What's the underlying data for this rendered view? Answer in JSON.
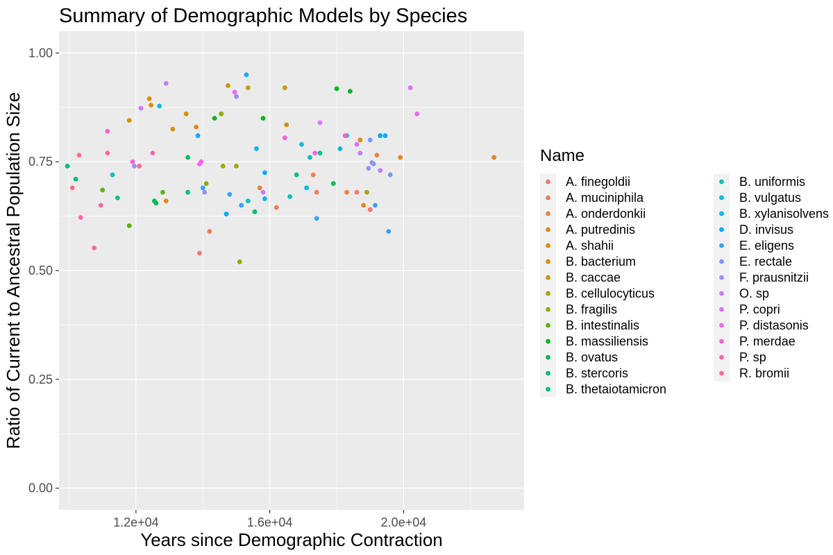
{
  "chart_data": {
    "type": "scatter",
    "title": "Summary of Demographic Models by Species",
    "xlabel": "Years since Demographic Contraction",
    "ylabel": "Ratio of Current to Ancestral Population Size",
    "xlim": [
      9700,
      23600
    ],
    "ylim": [
      -0.05,
      1.05
    ],
    "x_ticks": [
      12000,
      16000,
      20000
    ],
    "x_tick_labels": [
      "1.2e+04",
      "1.6e+04",
      "2.0e+04"
    ],
    "y_ticks": [
      0.0,
      0.25,
      0.5,
      0.75,
      1.0
    ],
    "y_tick_labels": [
      "0.00",
      "0.25",
      "0.50",
      "0.75",
      "1.00"
    ],
    "grid": true,
    "panel_background": "#ebebeb",
    "legend": {
      "title": "Name",
      "position": "right",
      "columns": 2
    },
    "series": [
      {
        "name": "A. finegoldii",
        "color": "#F8766D",
        "points": [
          [
            13900,
            0.54
          ],
          [
            18600,
            0.68
          ],
          [
            19000,
            0.64
          ]
        ]
      },
      {
        "name": "A. muciniphila",
        "color": "#F37B59",
        "points": [
          [
            14200,
            0.59
          ],
          [
            16200,
            0.645
          ],
          [
            17300,
            0.72
          ],
          [
            17400,
            0.68
          ]
        ]
      },
      {
        "name": "A. onderdonkii",
        "color": "#ED813E",
        "points": [
          [
            15700,
            0.69
          ],
          [
            18300,
            0.68
          ],
          [
            19200,
            0.765
          ]
        ]
      },
      {
        "name": "A. putredinis",
        "color": "#E6861A",
        "points": [
          [
            12900,
            0.66
          ],
          [
            13800,
            0.83
          ],
          [
            18800,
            0.65
          ],
          [
            19900,
            0.76
          ],
          [
            22700,
            0.76
          ]
        ]
      },
      {
        "name": "A. shahii",
        "color": "#DE8C00",
        "points": [
          [
            12400,
            0.895
          ],
          [
            12450,
            0.88
          ],
          [
            18700,
            0.8
          ]
        ]
      },
      {
        "name": "B. bacterium",
        "color": "#D39200",
        "points": [
          [
            11800,
            0.845
          ],
          [
            13100,
            0.825
          ],
          [
            13500,
            0.86
          ],
          [
            16500,
            0.835
          ]
        ]
      },
      {
        "name": "B. caccae",
        "color": "#C99800",
        "points": [
          [
            14750,
            0.925
          ],
          [
            15350,
            0.92
          ],
          [
            16450,
            0.92
          ]
        ]
      },
      {
        "name": "B. cellulocyticus",
        "color": "#A6A500",
        "points": [
          [
            14600,
            0.74
          ],
          [
            15000,
            0.74
          ],
          [
            18900,
            0.68
          ]
        ]
      },
      {
        "name": "B. fragilis",
        "color": "#8EAB00",
        "points": [
          [
            14100,
            0.7
          ],
          [
            14550,
            0.86
          ],
          [
            15100,
            0.52
          ]
        ]
      },
      {
        "name": "B. intestinalis",
        "color": "#5BB300",
        "points": [
          [
            11000,
            0.685
          ],
          [
            11800,
            0.603
          ],
          [
            12800,
            0.68
          ]
        ]
      },
      {
        "name": "B. massiliensis",
        "color": "#00B81F",
        "points": [
          [
            14350,
            0.85
          ],
          [
            15800,
            0.85
          ],
          [
            18000,
            0.918
          ],
          [
            18400,
            0.912
          ]
        ]
      },
      {
        "name": "B. ovatus",
        "color": "#00BC56",
        "points": [
          [
            12550,
            0.66
          ],
          [
            12600,
            0.655
          ],
          [
            13550,
            0.76
          ],
          [
            17900,
            0.7
          ]
        ]
      },
      {
        "name": "B. stercoris",
        "color": "#00BE6C",
        "points": [
          [
            9950,
            0.74
          ],
          [
            10200,
            0.71
          ],
          [
            13550,
            0.68
          ],
          [
            15550,
            0.635
          ]
        ]
      },
      {
        "name": "B. thetaiotamicron",
        "color": "#00C08B",
        "points": [
          [
            11450,
            0.667
          ],
          [
            16800,
            0.72
          ],
          [
            17500,
            0.77
          ]
        ]
      },
      {
        "name": "B. uniformis",
        "color": "#00C0B8",
        "points": [
          [
            11300,
            0.72
          ],
          [
            15350,
            0.66
          ],
          [
            16600,
            0.67
          ],
          [
            17200,
            0.76
          ],
          [
            18300,
            0.81
          ]
        ]
      },
      {
        "name": "B. vulgatus",
        "color": "#00BCD8",
        "points": [
          [
            12700,
            0.878
          ],
          [
            16950,
            0.79
          ],
          [
            17100,
            0.69
          ]
        ]
      },
      {
        "name": "B. xylanisolvens",
        "color": "#00B4EF",
        "points": [
          [
            15300,
            0.95
          ],
          [
            15600,
            0.78
          ],
          [
            15850,
            0.665
          ],
          [
            18100,
            0.78
          ]
        ]
      },
      {
        "name": "D. invisus",
        "color": "#00A9FF",
        "points": [
          [
            13850,
            0.81
          ],
          [
            14700,
            0.63
          ],
          [
            15850,
            0.725
          ],
          [
            19300,
            0.81
          ],
          [
            19450,
            0.81
          ]
        ]
      },
      {
        "name": "E. eligens",
        "color": "#35A2FF",
        "points": [
          [
            14000,
            0.69
          ],
          [
            14800,
            0.675
          ],
          [
            15150,
            0.65
          ],
          [
            17400,
            0.62
          ],
          [
            19150,
            0.65
          ],
          [
            19550,
            0.59
          ]
        ]
      },
      {
        "name": "E. rectale",
        "color": "#7799FF",
        "points": [
          [
            19000,
            0.8
          ],
          [
            19100,
            0.745
          ],
          [
            19600,
            0.72
          ]
        ]
      },
      {
        "name": "F. prausnitzii",
        "color": "#9590FF",
        "points": [
          [
            11950,
            0.74
          ],
          [
            14050,
            0.68
          ],
          [
            15000,
            0.9
          ],
          [
            18950,
            0.735
          ],
          [
            19050,
            0.748
          ]
        ]
      },
      {
        "name": "O. sp",
        "color": "#C77CFF",
        "points": [
          [
            12900,
            0.93
          ],
          [
            15800,
            0.68
          ],
          [
            18700,
            0.77
          ],
          [
            19300,
            0.73
          ]
        ]
      },
      {
        "name": "P. copri",
        "color": "#D973FC",
        "points": [
          [
            12150,
            0.873
          ],
          [
            17500,
            0.84
          ],
          [
            18600,
            0.79
          ],
          [
            20200,
            0.92
          ]
        ]
      },
      {
        "name": "P. distasonis",
        "color": "#EF67EB",
        "points": [
          [
            13900,
            0.745
          ],
          [
            13950,
            0.75
          ],
          [
            14950,
            0.91
          ],
          [
            20400,
            0.86
          ]
        ]
      },
      {
        "name": "P. merdae",
        "color": "#FB61D7",
        "points": [
          [
            11150,
            0.82
          ],
          [
            11900,
            0.75
          ],
          [
            16450,
            0.805
          ],
          [
            17350,
            0.77
          ],
          [
            18250,
            0.81
          ]
        ]
      },
      {
        "name": "P. sp",
        "color": "#FF65AE",
        "points": [
          [
            10350,
            0.622
          ],
          [
            10950,
            0.65
          ],
          [
            11150,
            0.77
          ],
          [
            12500,
            0.77
          ]
        ]
      },
      {
        "name": "R. bromii",
        "color": "#FF6C91",
        "points": [
          [
            10100,
            0.69
          ],
          [
            10300,
            0.765
          ],
          [
            10750,
            0.552
          ],
          [
            12100,
            0.74
          ]
        ]
      }
    ]
  }
}
